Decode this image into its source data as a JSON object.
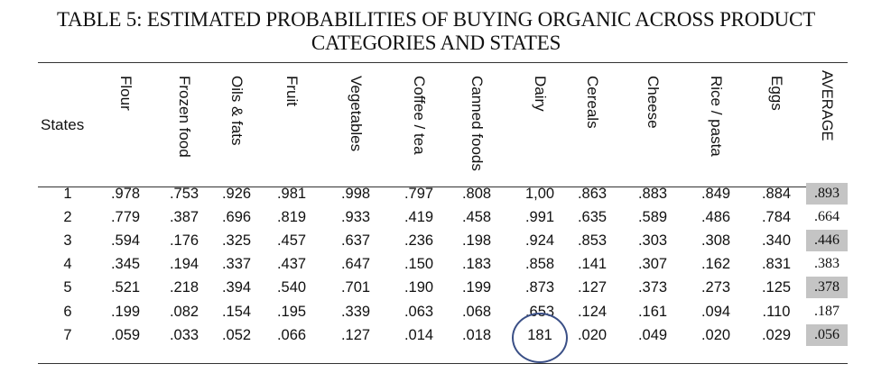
{
  "title": {
    "line1": "TABLE 5: ESTIMATED PROBABILITIES OF BUYING ORGANIC ACROSS PRODUCT",
    "line2": "CATEGORIES AND STATES"
  },
  "table": {
    "states_header": "States",
    "columns": [
      "Flour",
      "Frozen food",
      "Oils & fats",
      "Fruit",
      "Vegetables",
      "Coffee / tea",
      "Canned foods",
      "Dairy",
      "Cereals",
      "Cheese",
      "Rice / pasta",
      "Eggs",
      "AVERAGE"
    ],
    "rows": [
      {
        "state": "1",
        "values": [
          ".978",
          ".753",
          ".926",
          ".981",
          ".998",
          ".797",
          ".808",
          "1,00",
          ".863",
          ".883",
          ".849",
          ".884"
        ],
        "average": ".893",
        "average_shaded": true
      },
      {
        "state": "2",
        "values": [
          ".779",
          ".387",
          ".696",
          ".819",
          ".933",
          ".419",
          ".458",
          ".991",
          ".635",
          ".589",
          ".486",
          ".784"
        ],
        "average": ".664",
        "average_shaded": false
      },
      {
        "state": "3",
        "values": [
          ".594",
          ".176",
          ".325",
          ".457",
          ".637",
          ".236",
          ".198",
          ".924",
          ".853",
          ".303",
          ".308",
          ".340"
        ],
        "average": ".446",
        "average_shaded": true
      },
      {
        "state": "4",
        "values": [
          ".345",
          ".194",
          ".337",
          ".437",
          ".647",
          ".150",
          ".183",
          ".858",
          ".141",
          ".307",
          ".162",
          ".831"
        ],
        "average": ".383",
        "average_shaded": false
      },
      {
        "state": "5",
        "values": [
          ".521",
          ".218",
          ".394",
          ".540",
          ".701",
          ".190",
          ".199",
          ".873",
          ".127",
          ".373",
          ".273",
          ".125"
        ],
        "average": ".378",
        "average_shaded": true
      },
      {
        "state": "6",
        "values": [
          ".199",
          ".082",
          ".154",
          ".195",
          ".339",
          ".063",
          ".068",
          ".653",
          ".124",
          ".161",
          ".094",
          ".110"
        ],
        "average": ".187",
        "average_shaded": false
      },
      {
        "state": "7",
        "values": [
          ".059",
          ".033",
          ".052",
          ".066",
          ".127",
          ".014",
          ".018",
          "181",
          ".020",
          ".049",
          ".020",
          ".029"
        ],
        "average": ".056",
        "average_shaded": true
      }
    ]
  },
  "colors": {
    "average_shade": "#c4c4c4",
    "circle_annotation": "#3a4f86"
  }
}
